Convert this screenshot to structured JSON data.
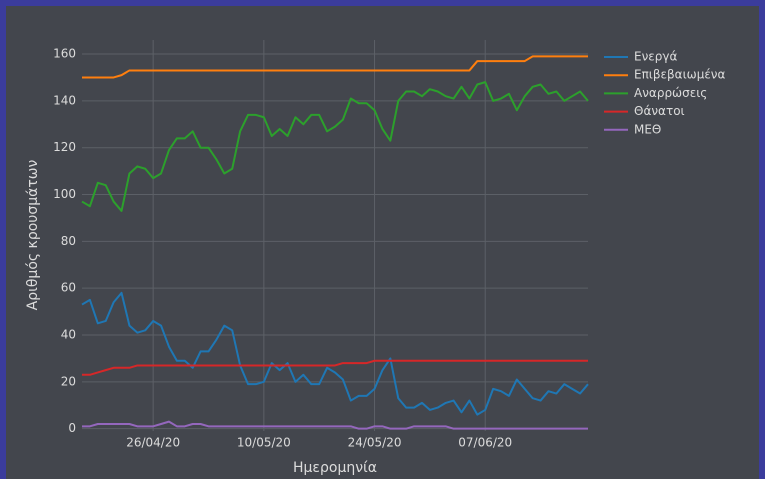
{
  "chart_data": {
    "type": "line",
    "x_label": "Ημερομηνία",
    "y_label": "Αριθμός κρουσμάτων",
    "x": [
      "2020-04-17",
      "2020-04-18",
      "2020-04-19",
      "2020-04-20",
      "2020-04-21",
      "2020-04-22",
      "2020-04-23",
      "2020-04-24",
      "2020-04-25",
      "2020-04-26",
      "2020-04-27",
      "2020-04-28",
      "2020-04-29",
      "2020-04-30",
      "2020-05-01",
      "2020-05-02",
      "2020-05-03",
      "2020-05-04",
      "2020-05-05",
      "2020-05-06",
      "2020-05-07",
      "2020-05-08",
      "2020-05-09",
      "2020-05-10",
      "2020-05-11",
      "2020-05-12",
      "2020-05-13",
      "2020-05-14",
      "2020-05-15",
      "2020-05-16",
      "2020-05-17",
      "2020-05-18",
      "2020-05-19",
      "2020-05-20",
      "2020-05-21",
      "2020-05-22",
      "2020-05-23",
      "2020-05-24",
      "2020-05-25",
      "2020-05-26",
      "2020-05-27",
      "2020-05-28",
      "2020-05-29",
      "2020-05-30",
      "2020-05-31",
      "2020-06-01",
      "2020-06-02",
      "2020-06-03",
      "2020-06-04",
      "2020-06-05",
      "2020-06-06",
      "2020-06-07",
      "2020-06-08",
      "2020-06-09",
      "2020-06-10",
      "2020-06-11",
      "2020-06-12",
      "2020-06-13",
      "2020-06-14",
      "2020-06-15",
      "2020-06-16",
      "2020-06-17",
      "2020-06-18",
      "2020-06-19",
      "2020-06-20"
    ],
    "series": [
      {
        "name": "Ενεργά",
        "color": "#1f77b4",
        "values": [
          53,
          55,
          45,
          46,
          54,
          58,
          44,
          41,
          42,
          46,
          44,
          35,
          29,
          29,
          26,
          33,
          33,
          38,
          44,
          42,
          27,
          19,
          19,
          20,
          28,
          25,
          28,
          20,
          23,
          19,
          19,
          26,
          24,
          21,
          12,
          14,
          14,
          17,
          25,
          30,
          13,
          9,
          9,
          11,
          8,
          9,
          11,
          12,
          7,
          12,
          6,
          8,
          17,
          16,
          14,
          21,
          17,
          13,
          12,
          16,
          15,
          19,
          17,
          15,
          19
        ]
      },
      {
        "name": "Επιβεβαιωμένα",
        "color": "#ff7f0e",
        "values": [
          150,
          150,
          150,
          150,
          150,
          151,
          153,
          153,
          153,
          153,
          153,
          153,
          153,
          153,
          153,
          153,
          153,
          153,
          153,
          153,
          153,
          153,
          153,
          153,
          153,
          153,
          153,
          153,
          153,
          153,
          153,
          153,
          153,
          153,
          153,
          153,
          153,
          153,
          153,
          153,
          153,
          153,
          153,
          153,
          153,
          153,
          153,
          153,
          153,
          153,
          157,
          157,
          157,
          157,
          157,
          157,
          157,
          159,
          159,
          159,
          159,
          159,
          159,
          159,
          159
        ]
      },
      {
        "name": "Αναρρώσεις",
        "color": "#2ca02c",
        "values": [
          97,
          95,
          105,
          104,
          97,
          93,
          109,
          112,
          111,
          107,
          109,
          119,
          124,
          124,
          127,
          120,
          120,
          115,
          109,
          111,
          127,
          134,
          134,
          133,
          125,
          128,
          125,
          133,
          130,
          134,
          134,
          127,
          129,
          132,
          141,
          139,
          139,
          136,
          128,
          123,
          140,
          144,
          144,
          142,
          145,
          144,
          142,
          141,
          146,
          141,
          147,
          148,
          140,
          141,
          143,
          136,
          142,
          146,
          147,
          143,
          144,
          140,
          142,
          144,
          140
        ]
      },
      {
        "name": "Θάνατοι",
        "color": "#d62728",
        "values": [
          23,
          23,
          24,
          25,
          26,
          26,
          26,
          27,
          27,
          27,
          27,
          27,
          27,
          27,
          27,
          27,
          27,
          27,
          27,
          27,
          27,
          27,
          27,
          27,
          27,
          27,
          27,
          27,
          27,
          27,
          27,
          27,
          27,
          28,
          28,
          28,
          28,
          29,
          29,
          29,
          29,
          29,
          29,
          29,
          29,
          29,
          29,
          29,
          29,
          29,
          29,
          29,
          29,
          29,
          29,
          29,
          29,
          29,
          29,
          29,
          29,
          29,
          29,
          29,
          29
        ]
      },
      {
        "name": "ΜΕΘ",
        "color": "#9467bd",
        "values": [
          1,
          1,
          2,
          2,
          2,
          2,
          2,
          1,
          1,
          1,
          2,
          3,
          1,
          1,
          2,
          2,
          1,
          1,
          1,
          1,
          1,
          1,
          1,
          1,
          1,
          1,
          1,
          1,
          1,
          1,
          1,
          1,
          1,
          1,
          1,
          0,
          0,
          1,
          1,
          0,
          0,
          0,
          1,
          1,
          1,
          1,
          1,
          0,
          0,
          0,
          0,
          0,
          0,
          0,
          0,
          0,
          0,
          0,
          0,
          0,
          0,
          0,
          0,
          0,
          0
        ]
      }
    ],
    "xlim": [
      "2020-04-17",
      "2020-06-20"
    ],
    "xticks": [
      {
        "value": "2020-04-26",
        "label": "26/04/20"
      },
      {
        "value": "2020-05-10",
        "label": "10/05/20"
      },
      {
        "value": "2020-05-24",
        "label": "24/05/20"
      },
      {
        "value": "2020-06-07",
        "label": "07/06/20"
      }
    ],
    "ylim": [
      -1,
      166
    ],
    "yticks": [
      0,
      20,
      40,
      60,
      80,
      100,
      120,
      140,
      160
    ],
    "grid": true,
    "legend": "right"
  }
}
